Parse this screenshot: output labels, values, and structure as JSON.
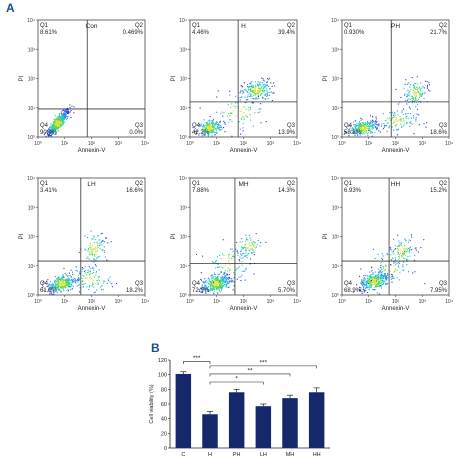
{
  "panel_labels": {
    "a": "A",
    "b": "B"
  },
  "chart_data": [
    {
      "type": "scatter",
      "title": "Con",
      "xlabel": "Annexin-V",
      "ylabel": "PI",
      "tick_labels": [
        "10⁰",
        "10¹",
        "10²",
        "10³",
        "10⁴"
      ],
      "quadrants": {
        "Q1": "8.61%",
        "Q2": "0.469%",
        "Q3": "0.0%",
        "Q4": "90.9%"
      }
    },
    {
      "type": "scatter",
      "title": "H",
      "xlabel": "Annexin-V",
      "ylabel": "PI",
      "tick_labels": [
        "10⁰",
        "10¹",
        "10²",
        "10³",
        "10⁴"
      ],
      "quadrants": {
        "Q1": "4.46%",
        "Q2": "39.4%",
        "Q3": "13.9%",
        "Q4": "42.2%"
      }
    },
    {
      "type": "scatter",
      "title": "PH",
      "xlabel": "Annexin-V",
      "ylabel": "PI",
      "tick_labels": [
        "10⁰",
        "10¹",
        "10²",
        "10³",
        "10⁴"
      ],
      "quadrants": {
        "Q1": "0.930%",
        "Q2": "21.7%",
        "Q3": "18.6%",
        "Q4": "58.8%"
      }
    },
    {
      "type": "scatter",
      "title": "LH",
      "xlabel": "Annexin-V",
      "ylabel": "PI",
      "tick_labels": [
        "10⁰",
        "10¹",
        "10²",
        "10³",
        "10⁴"
      ],
      "quadrants": {
        "Q1": "3.41%",
        "Q2": "16.6%",
        "Q3": "18.2%",
        "Q4": "61.9%"
      }
    },
    {
      "type": "scatter",
      "title": "MH",
      "xlabel": "Annexin-V",
      "ylabel": "PI",
      "tick_labels": [
        "10⁰",
        "10¹",
        "10²",
        "10³",
        "10⁴"
      ],
      "quadrants": {
        "Q1": "7.88%",
        "Q2": "14.3%",
        "Q3": "5.70%",
        "Q4": "72.1%"
      }
    },
    {
      "type": "scatter",
      "title": "HH",
      "xlabel": "Annexin-V",
      "ylabel": "PI",
      "tick_labels": [
        "10⁰",
        "10¹",
        "10²",
        "10³",
        "10⁴"
      ],
      "quadrants": {
        "Q1": "6.93%",
        "Q2": "15.2%",
        "Q3": "7.95%",
        "Q4": "68.9%"
      }
    },
    {
      "type": "bar",
      "categories": [
        "C",
        "H",
        "PH",
        "LH",
        "MH",
        "HH"
      ],
      "values": [
        101,
        46,
        76,
        57,
        68,
        76
      ],
      "errors": [
        3,
        4,
        4,
        3,
        4,
        6
      ],
      "ylabel": "Cell viability (%)",
      "ylim": [
        0,
        120
      ],
      "yticks": [
        0,
        20,
        40,
        60,
        80,
        100,
        120
      ],
      "bar_color": "#14286b",
      "significance": [
        {
          "from": "C",
          "to": "H",
          "label": "***"
        },
        {
          "from": "H",
          "to": "HH",
          "label": "***"
        },
        {
          "from": "H",
          "to": "MH",
          "label": "**"
        },
        {
          "from": "H",
          "to": "LH",
          "label": "*"
        }
      ]
    }
  ]
}
